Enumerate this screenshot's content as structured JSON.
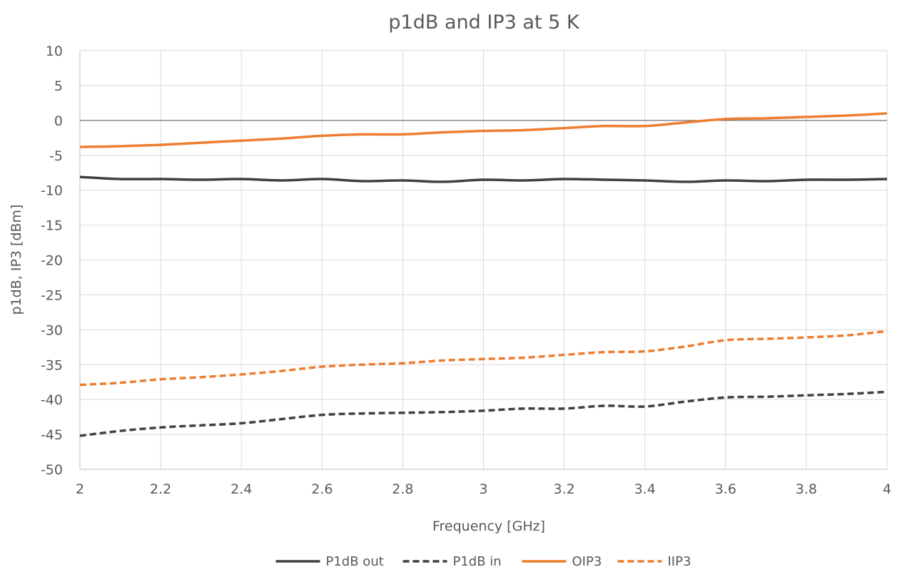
{
  "chart_data": {
    "type": "line",
    "title": "p1dB and IP3 at 5 K",
    "xlabel": "Frequency [GHz]",
    "ylabel": "p1dB, IP3 [dBm]",
    "xlim": [
      2,
      4
    ],
    "ylim": [
      -50,
      10
    ],
    "x_ticks": [
      "2",
      "2.2",
      "2.4",
      "2.6",
      "2.8",
      "3",
      "3.2",
      "3.4",
      "3.6",
      "3.8",
      "4"
    ],
    "y_ticks": [
      "10",
      "5",
      "0",
      "-5",
      "-10",
      "-15",
      "-20",
      "-25",
      "-30",
      "-35",
      "-40",
      "-45",
      "-50"
    ],
    "grid": true,
    "legend_position": "bottom",
    "x": [
      2.0,
      2.1,
      2.2,
      2.3,
      2.4,
      2.5,
      2.6,
      2.7,
      2.8,
      2.9,
      3.0,
      3.1,
      3.2,
      3.3,
      3.4,
      3.5,
      3.6,
      3.7,
      3.8,
      3.9,
      4.0
    ],
    "series": [
      {
        "name": "P1dB out",
        "color": "#404040",
        "dash": "solid",
        "values": [
          -8.1,
          -8.4,
          -8.4,
          -8.5,
          -8.4,
          -8.6,
          -8.4,
          -8.7,
          -8.6,
          -8.8,
          -8.5,
          -8.6,
          -8.4,
          -8.5,
          -8.6,
          -8.8,
          -8.6,
          -8.7,
          -8.5,
          -8.5,
          -8.4
        ]
      },
      {
        "name": "P1dB in",
        "color": "#404040",
        "dash": "dashed",
        "values": [
          -45.2,
          -44.5,
          -44.0,
          -43.7,
          -43.4,
          -42.8,
          -42.2,
          -42.0,
          -41.9,
          -41.8,
          -41.6,
          -41.3,
          -41.3,
          -40.9,
          -41.0,
          -40.3,
          -39.7,
          -39.6,
          -39.4,
          -39.2,
          -38.9
        ]
      },
      {
        "name": "OIP3",
        "color": "#ED7D31",
        "dash": "solid",
        "values": [
          -3.8,
          -3.7,
          -3.5,
          -3.2,
          -2.9,
          -2.6,
          -2.2,
          -2.0,
          -2.0,
          -1.7,
          -1.5,
          -1.4,
          -1.1,
          -0.8,
          -0.8,
          -0.3,
          0.2,
          0.3,
          0.5,
          0.7,
          1.0
        ]
      },
      {
        "name": "IIP3",
        "color": "#ED7D31",
        "dash": "dashed",
        "values": [
          -37.9,
          -37.6,
          -37.1,
          -36.8,
          -36.4,
          -35.9,
          -35.3,
          -35.0,
          -34.8,
          -34.4,
          -34.2,
          -34.0,
          -33.6,
          -33.2,
          -33.1,
          -32.4,
          -31.5,
          -31.3,
          -31.1,
          -30.8,
          -30.2
        ]
      }
    ]
  }
}
